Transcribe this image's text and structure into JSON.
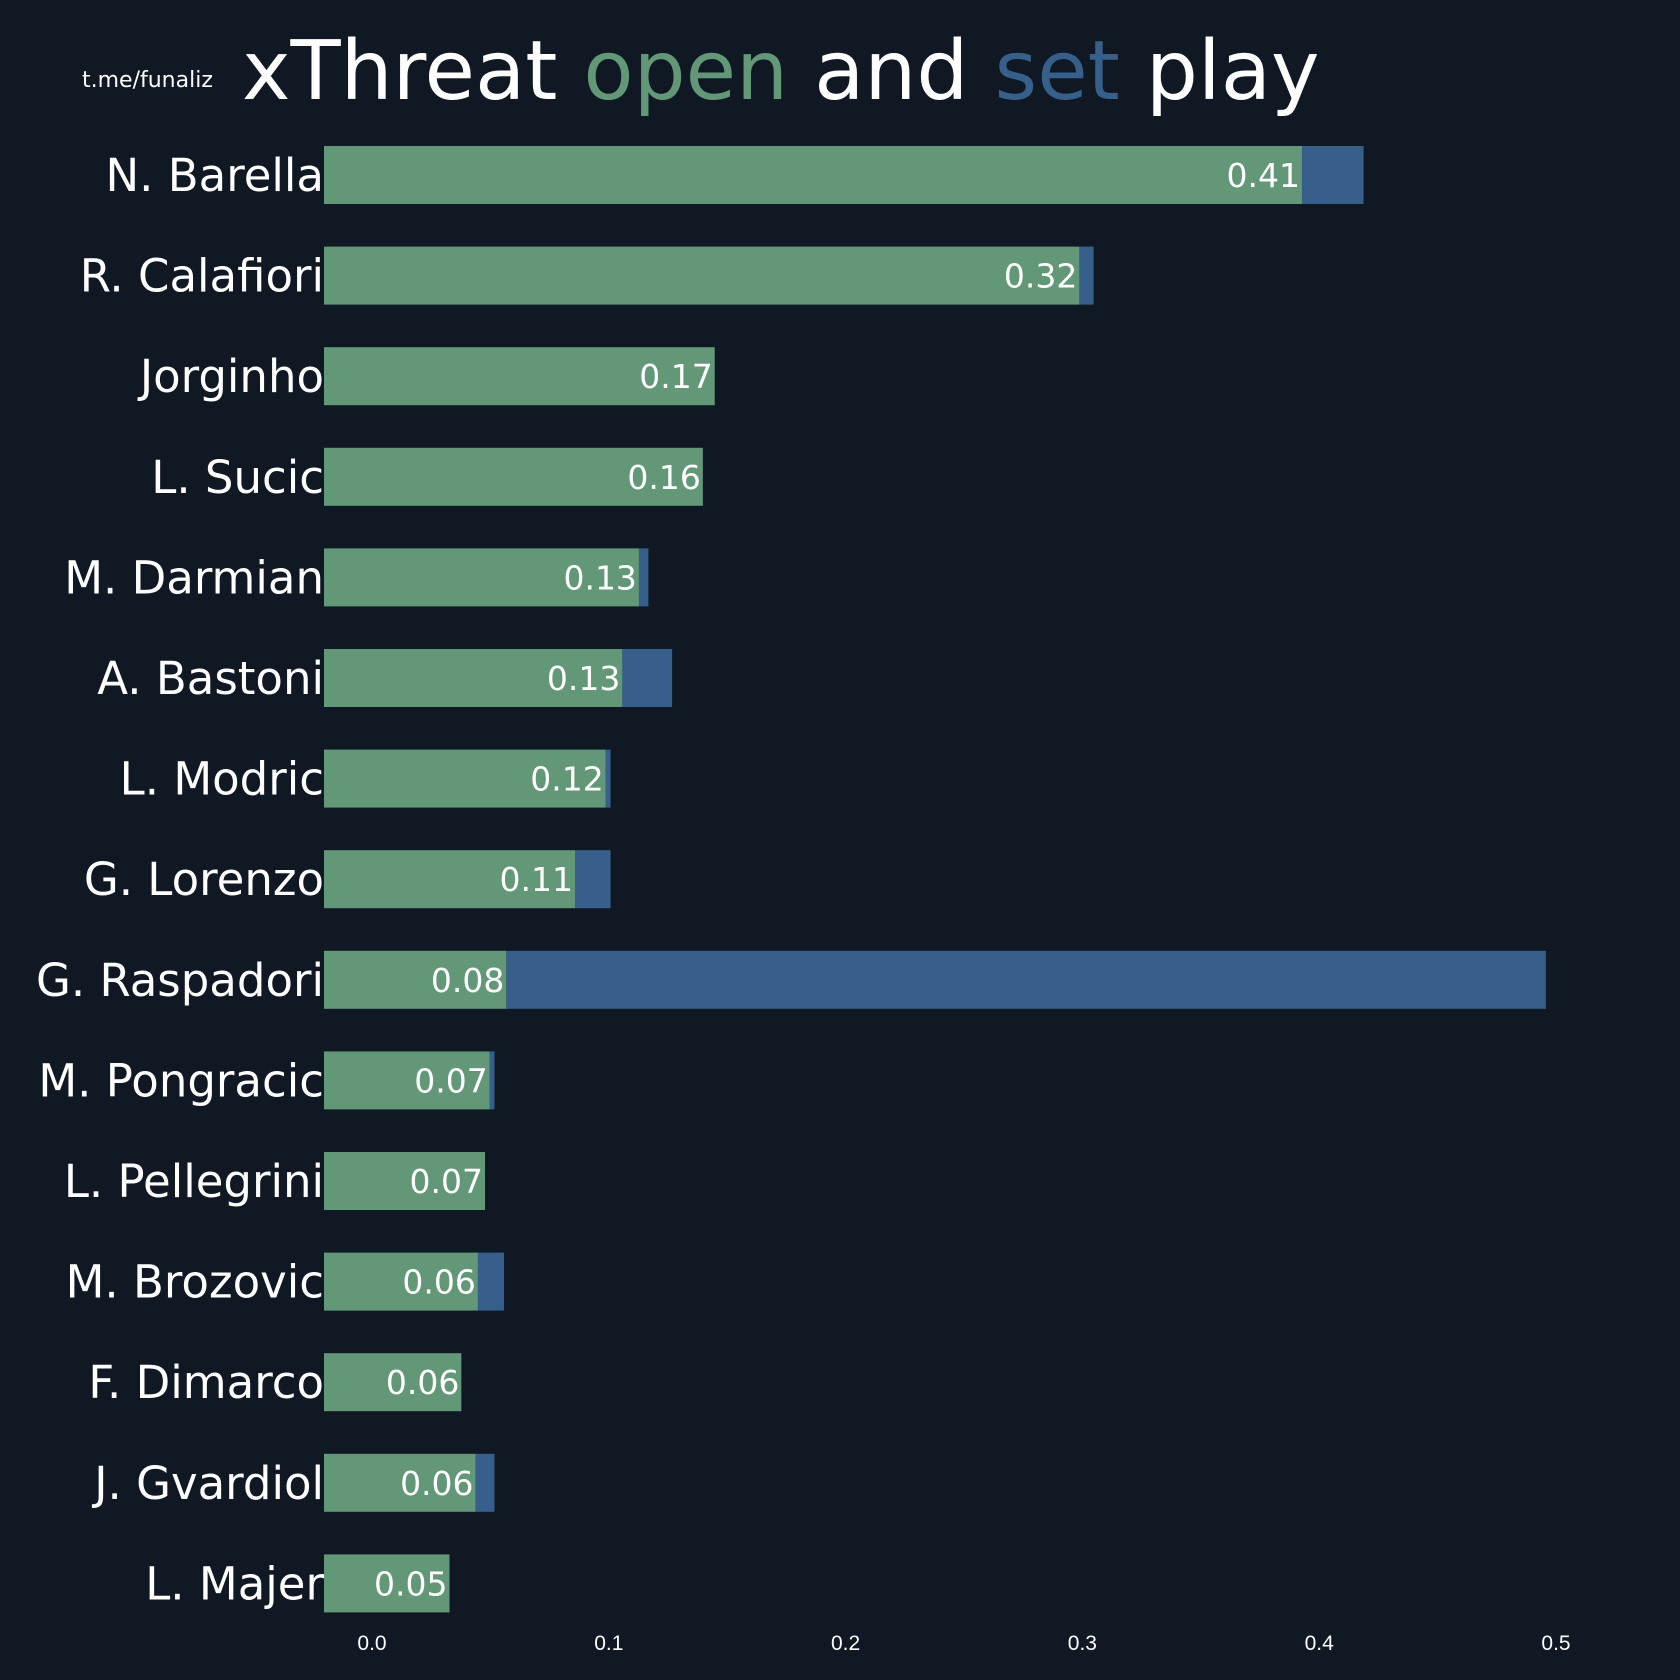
{
  "watermark": "t.me/funaliz",
  "title": {
    "part1": "xThreat ",
    "part2": "open",
    "part3": " and ",
    "part4": "set",
    "part5": " play"
  },
  "colors": {
    "background": "#0f1823",
    "open": "#629877",
    "set": "#36608b",
    "text": "#ffffff"
  },
  "chart_data": {
    "type": "bar",
    "orientation": "horizontal",
    "stacked": true,
    "title": "xThreat open and set play",
    "xlabel": "",
    "ylabel": "",
    "xlim": [
      -0.02,
      0.53
    ],
    "xticks": [
      0.0,
      0.1,
      0.2,
      0.3,
      0.4,
      0.5
    ],
    "xtick_labels": [
      "0.0",
      "0.1",
      "0.2",
      "0.3",
      "0.4",
      "0.5"
    ],
    "grid": false,
    "categories": [
      "N. Barella",
      "R. Calafiori",
      "Jorginho",
      "L. Sucic",
      "M. Darmian",
      "A. Bastoni",
      "L. Modric",
      "G. Lorenzo",
      "G. Raspadori",
      "M. Pongracic",
      "L. Pellegrini",
      "M. Brozovic",
      "F. Dimarco",
      "J. Gvardiol",
      "L. Majer"
    ],
    "series": [
      {
        "name": "open",
        "values": [
          0.413,
          0.319,
          0.165,
          0.16,
          0.133,
          0.126,
          0.119,
          0.106,
          0.077,
          0.07,
          0.068,
          0.065,
          0.058,
          0.064,
          0.053
        ]
      },
      {
        "name": "set",
        "values": [
          0.026,
          0.006,
          0.0,
          0.0,
          0.004,
          0.021,
          0.002,
          0.015,
          0.439,
          0.002,
          0.0,
          0.011,
          0.0,
          0.008,
          0.0
        ]
      }
    ],
    "value_labels": [
      "0.41",
      "0.32",
      "0.17",
      "0.16",
      "0.13",
      "0.13",
      "0.12",
      "0.11",
      "0.08",
      "0.07",
      "0.07",
      "0.06",
      "0.06",
      "0.06",
      "0.05"
    ]
  }
}
